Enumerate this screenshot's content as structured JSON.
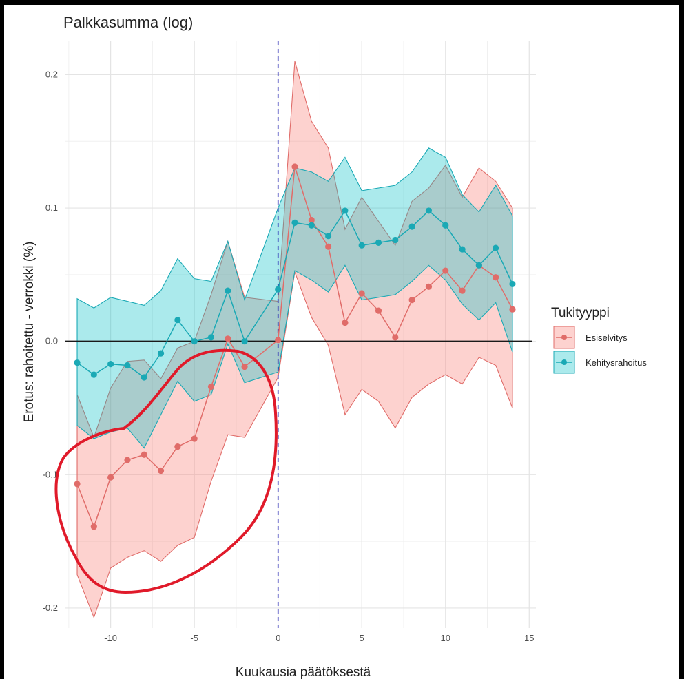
{
  "chart_data": {
    "type": "line",
    "title": "Palkkasumma (log)",
    "xlabel": "Kuukausia päätöksestä",
    "ylabel": "Erotus: rahoitettu - verrokki (%)",
    "xlim": [
      -12.7,
      15.4
    ],
    "ylim": [
      -0.215,
      0.225
    ],
    "x_ticks": [
      -10,
      -5,
      0,
      5,
      10,
      15
    ],
    "x_tick_labels": [
      "-10",
      "-5",
      "0",
      "5",
      "10",
      "15"
    ],
    "y_ticks": [
      -0.2,
      -0.1,
      0.0,
      0.1,
      0.2
    ],
    "y_tick_labels": [
      "-0.2",
      "-0.1",
      "0.0",
      "0.1",
      "0.2"
    ],
    "grid": true,
    "reference_lines": {
      "horizontal_y": 0,
      "vertical_x": 0,
      "vertical_style": "dashed"
    },
    "legend": {
      "title": "Tukityyppi",
      "position": "right"
    },
    "x": [
      -12,
      -11,
      -10,
      -9,
      -8,
      -7,
      -6,
      -5,
      -4,
      -3,
      -2,
      -1,
      0,
      1,
      2,
      3,
      4,
      5,
      6,
      7,
      8,
      9,
      10,
      11,
      12,
      13,
      14
    ],
    "series": [
      {
        "name": "Esiselvitys",
        "color": "#e06c69",
        "fill": "#f8766d",
        "values": [
          -0.107,
          -0.139,
          -0.102,
          -0.089,
          -0.085,
          -0.097,
          -0.079,
          -0.073,
          -0.034,
          0.002,
          -0.019,
          null,
          0.001,
          0.131,
          0.091,
          0.071,
          0.014,
          0.036,
          0.023,
          0.003,
          0.031,
          0.041,
          0.053,
          0.038,
          0.057,
          0.048,
          0.024
        ],
        "lower": [
          -0.175,
          -0.207,
          -0.17,
          -0.162,
          -0.157,
          -0.165,
          -0.153,
          -0.147,
          -0.105,
          -0.07,
          -0.072,
          null,
          -0.027,
          0.052,
          0.018,
          -0.003,
          -0.055,
          -0.036,
          -0.045,
          -0.065,
          -0.042,
          -0.032,
          -0.025,
          -0.032,
          -0.012,
          -0.018,
          -0.05
        ],
        "upper": [
          -0.04,
          -0.072,
          -0.035,
          -0.015,
          -0.014,
          -0.028,
          -0.005,
          0.0,
          0.035,
          0.075,
          0.033,
          null,
          0.03,
          0.21,
          0.165,
          0.145,
          0.084,
          0.108,
          0.09,
          0.072,
          0.105,
          0.115,
          0.132,
          0.108,
          0.13,
          0.12,
          0.1
        ]
      },
      {
        "name": "Kehitysrahoitus",
        "color": "#1aa9b5",
        "fill": "#00bfc4",
        "values": [
          -0.016,
          -0.025,
          -0.017,
          -0.018,
          -0.027,
          -0.009,
          0.016,
          0.0,
          0.003,
          0.038,
          0.0,
          null,
          0.039,
          0.089,
          0.087,
          0.079,
          0.098,
          0.072,
          0.074,
          0.076,
          0.086,
          0.098,
          0.087,
          0.069,
          0.057,
          0.07,
          0.043
        ],
        "lower": [
          -0.063,
          -0.073,
          -0.068,
          -0.065,
          -0.08,
          -0.055,
          -0.03,
          -0.045,
          -0.04,
          -0.002,
          -0.031,
          null,
          -0.023,
          0.053,
          0.046,
          0.037,
          0.057,
          0.031,
          0.033,
          0.035,
          0.045,
          0.057,
          0.046,
          0.028,
          0.016,
          0.029,
          -0.008
        ],
        "upper": [
          0.032,
          0.025,
          0.033,
          0.03,
          0.027,
          0.038,
          0.062,
          0.047,
          0.045,
          0.075,
          0.031,
          null,
          0.1,
          0.13,
          0.127,
          0.12,
          0.138,
          0.113,
          0.115,
          0.117,
          0.127,
          0.145,
          0.138,
          0.11,
          0.097,
          0.117,
          0.094
        ]
      }
    ]
  }
}
